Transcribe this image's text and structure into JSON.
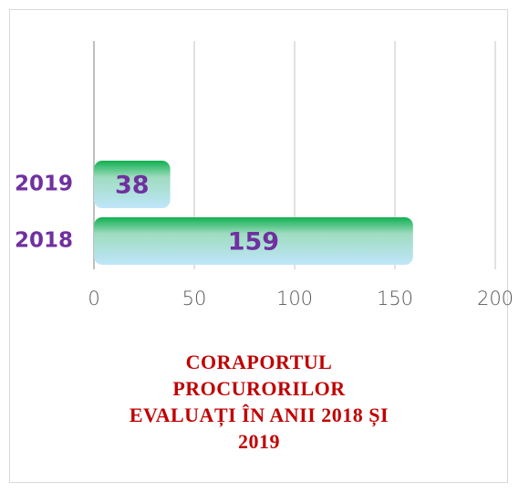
{
  "chart_data": {
    "type": "bar",
    "orientation": "horizontal",
    "title": "CORAPORTUL PROCURORILOR EVALUAȚI ÎN ANII 2018 ȘI 2019",
    "categories": [
      "2019",
      "2018"
    ],
    "values": [
      38,
      159
    ],
    "color_top": "#10b050",
    "color_bottom": "#bfe6fa",
    "label_color": "#7030a0",
    "xlim": [
      0,
      200
    ],
    "xticks": [
      0,
      50,
      100,
      150,
      200
    ],
    "grid": true
  }
}
